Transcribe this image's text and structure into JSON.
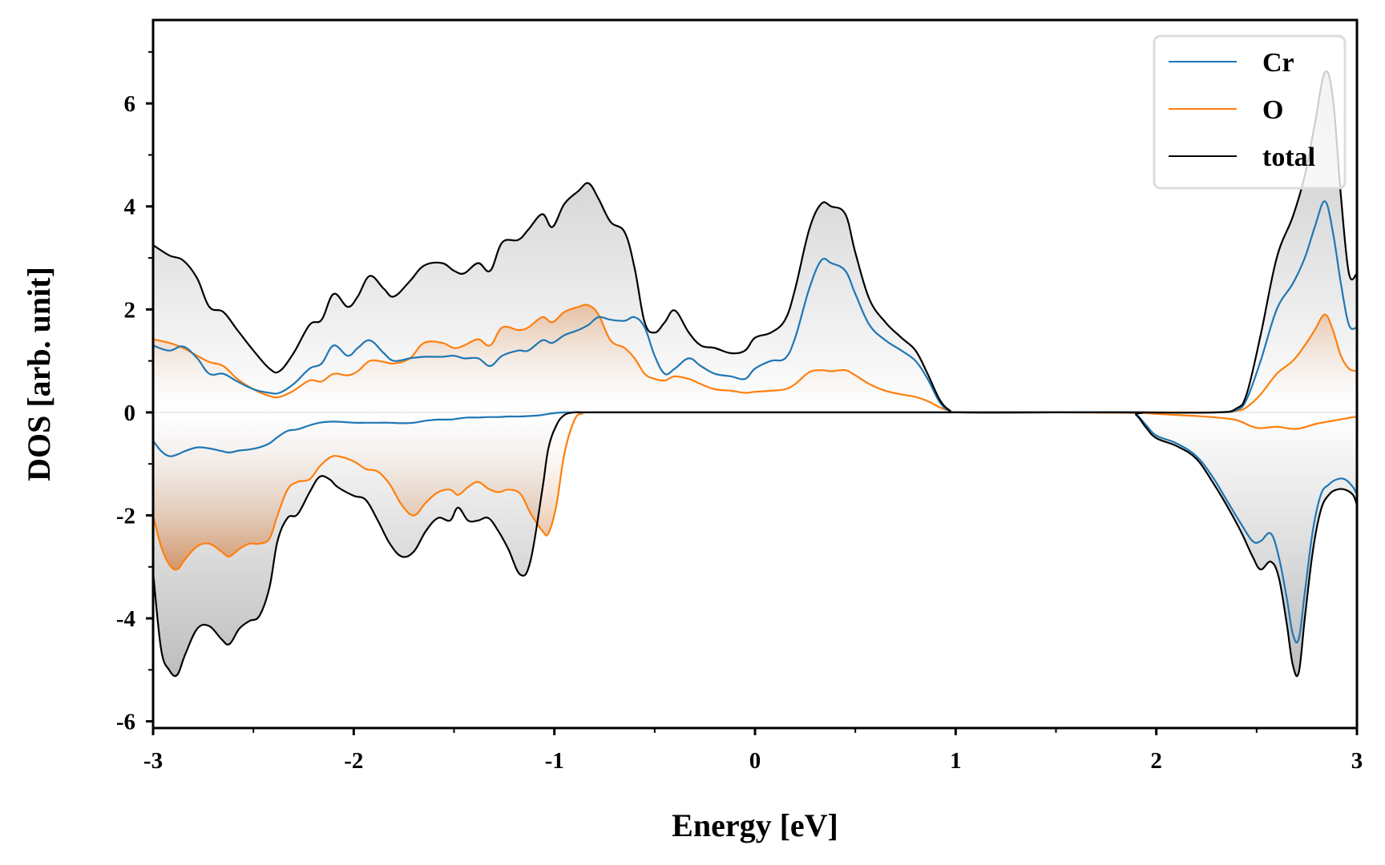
{
  "chart_data": {
    "type": "line",
    "title": "",
    "xlabel": "Energy [eV]",
    "ylabel": "DOS [arb. unit]",
    "xlim": [
      -3,
      3
    ],
    "ylim": [
      -6.13,
      7.62
    ],
    "xticks": [
      -3,
      -2,
      -1,
      0,
      1,
      2,
      3
    ],
    "xtick_labels": [
      "-3",
      "-2",
      "-1",
      "0",
      "1",
      "2",
      "3"
    ],
    "yticks": [
      -6,
      -4,
      -2,
      0,
      2,
      4,
      6
    ],
    "ytick_labels": [
      "-6",
      "-4",
      "-2",
      "0",
      "2",
      "4",
      "6"
    ],
    "grid": false,
    "legend_position": "top-right",
    "legend": [
      "Cr",
      "O",
      "total"
    ],
    "colors": {
      "Cr": "#1f77b4",
      "O": "#ff7f0e",
      "total": "#000000",
      "fill_total": "#b0b0b0",
      "fill_O": "#d2874a"
    },
    "series": [
      {
        "name": "total",
        "channel": "spin-up",
        "x": [
          -3.0,
          -2.92,
          -2.85,
          -2.78,
          -2.72,
          -2.65,
          -2.58,
          -2.5,
          -2.42,
          -2.37,
          -2.3,
          -2.22,
          -2.16,
          -2.1,
          -2.03,
          -1.98,
          -1.92,
          -1.85,
          -1.8,
          -1.72,
          -1.65,
          -1.56,
          -1.5,
          -1.45,
          -1.38,
          -1.32,
          -1.26,
          -1.18,
          -1.13,
          -1.06,
          -1.01,
          -0.95,
          -0.88,
          -0.83,
          -0.78,
          -0.72,
          -0.65,
          -0.6,
          -0.55,
          -0.5,
          -0.45,
          -0.4,
          -0.33,
          -0.27,
          -0.2,
          -0.12,
          -0.05,
          0.0,
          0.08,
          0.15,
          0.2,
          0.27,
          0.33,
          0.38,
          0.45,
          0.5,
          0.57,
          0.65,
          0.73,
          0.8,
          0.86,
          0.92,
          0.97,
          1.02,
          1.5,
          1.9,
          2.3,
          2.4,
          2.45,
          2.52,
          2.6,
          2.68,
          2.74,
          2.79,
          2.84,
          2.88,
          2.92,
          2.96,
          3.0
        ],
        "y": [
          3.25,
          3.05,
          2.95,
          2.6,
          2.05,
          1.95,
          1.6,
          1.2,
          0.85,
          0.8,
          1.15,
          1.7,
          1.8,
          2.3,
          2.05,
          2.25,
          2.65,
          2.4,
          2.25,
          2.55,
          2.85,
          2.9,
          2.75,
          2.7,
          2.9,
          2.75,
          3.3,
          3.35,
          3.55,
          3.85,
          3.6,
          4.05,
          4.3,
          4.45,
          4.15,
          3.7,
          3.5,
          2.8,
          1.75,
          1.55,
          1.75,
          1.98,
          1.55,
          1.3,
          1.25,
          1.15,
          1.2,
          1.45,
          1.55,
          1.8,
          2.4,
          3.55,
          4.05,
          4.0,
          3.85,
          3.1,
          2.2,
          1.75,
          1.45,
          1.2,
          0.75,
          0.25,
          0.04,
          0.0,
          0.0,
          0.0,
          0.0,
          0.08,
          0.35,
          1.5,
          3.0,
          3.8,
          4.6,
          5.6,
          6.6,
          6.1,
          4.2,
          2.7,
          2.7
        ]
      },
      {
        "name": "Cr",
        "channel": "spin-up",
        "x": [
          -3.0,
          -2.92,
          -2.85,
          -2.78,
          -2.72,
          -2.65,
          -2.58,
          -2.5,
          -2.42,
          -2.37,
          -2.3,
          -2.22,
          -2.16,
          -2.1,
          -2.03,
          -1.98,
          -1.92,
          -1.85,
          -1.8,
          -1.72,
          -1.65,
          -1.56,
          -1.5,
          -1.45,
          -1.38,
          -1.32,
          -1.26,
          -1.18,
          -1.13,
          -1.06,
          -1.01,
          -0.95,
          -0.88,
          -0.83,
          -0.78,
          -0.72,
          -0.65,
          -0.6,
          -0.55,
          -0.5,
          -0.45,
          -0.4,
          -0.33,
          -0.27,
          -0.2,
          -0.12,
          -0.05,
          0.0,
          0.08,
          0.15,
          0.2,
          0.27,
          0.33,
          0.38,
          0.45,
          0.5,
          0.57,
          0.65,
          0.73,
          0.8,
          0.86,
          0.92,
          0.97,
          1.02,
          1.5,
          1.9,
          2.3,
          2.4,
          2.45,
          2.52,
          2.6,
          2.68,
          2.74,
          2.79,
          2.84,
          2.88,
          2.92,
          2.96,
          3.0
        ],
        "y": [
          1.3,
          1.2,
          1.28,
          1.05,
          0.75,
          0.75,
          0.6,
          0.45,
          0.38,
          0.38,
          0.55,
          0.85,
          0.95,
          1.3,
          1.1,
          1.25,
          1.4,
          1.15,
          1.0,
          1.05,
          1.08,
          1.08,
          1.1,
          1.05,
          1.05,
          0.9,
          1.1,
          1.2,
          1.2,
          1.4,
          1.35,
          1.5,
          1.6,
          1.7,
          1.85,
          1.8,
          1.78,
          1.85,
          1.65,
          1.1,
          0.75,
          0.85,
          1.05,
          0.9,
          0.75,
          0.7,
          0.65,
          0.85,
          1.0,
          1.05,
          1.45,
          2.4,
          2.95,
          2.9,
          2.75,
          2.3,
          1.7,
          1.4,
          1.2,
          1.0,
          0.65,
          0.2,
          0.03,
          0.0,
          0.0,
          0.0,
          0.0,
          0.05,
          0.25,
          1.0,
          2.0,
          2.5,
          3.0,
          3.6,
          4.1,
          3.5,
          2.5,
          1.7,
          1.65
        ]
      },
      {
        "name": "O",
        "channel": "spin-up",
        "x": [
          -3.0,
          -2.92,
          -2.85,
          -2.78,
          -2.72,
          -2.65,
          -2.58,
          -2.5,
          -2.42,
          -2.37,
          -2.3,
          -2.22,
          -2.16,
          -2.1,
          -2.03,
          -1.98,
          -1.92,
          -1.85,
          -1.8,
          -1.72,
          -1.65,
          -1.56,
          -1.5,
          -1.45,
          -1.38,
          -1.32,
          -1.26,
          -1.18,
          -1.13,
          -1.06,
          -1.01,
          -0.95,
          -0.88,
          -0.83,
          -0.78,
          -0.72,
          -0.65,
          -0.6,
          -0.55,
          -0.5,
          -0.45,
          -0.4,
          -0.33,
          -0.27,
          -0.2,
          -0.12,
          -0.05,
          0.0,
          0.08,
          0.15,
          0.2,
          0.27,
          0.33,
          0.38,
          0.45,
          0.5,
          0.57,
          0.65,
          0.73,
          0.8,
          0.86,
          0.92,
          0.97,
          1.02,
          1.5,
          1.9,
          2.3,
          2.4,
          2.45,
          2.52,
          2.6,
          2.68,
          2.74,
          2.79,
          2.84,
          2.88,
          2.92,
          2.96,
          3.0
        ],
        "y": [
          1.42,
          1.35,
          1.25,
          1.1,
          0.98,
          0.9,
          0.65,
          0.45,
          0.32,
          0.3,
          0.42,
          0.62,
          0.6,
          0.75,
          0.72,
          0.8,
          1.0,
          0.98,
          0.95,
          1.05,
          1.35,
          1.35,
          1.25,
          1.3,
          1.42,
          1.3,
          1.65,
          1.6,
          1.65,
          1.85,
          1.75,
          1.95,
          2.05,
          2.08,
          1.9,
          1.4,
          1.25,
          1.05,
          0.75,
          0.65,
          0.62,
          0.7,
          0.65,
          0.55,
          0.45,
          0.42,
          0.38,
          0.4,
          0.42,
          0.45,
          0.55,
          0.78,
          0.82,
          0.8,
          0.82,
          0.72,
          0.55,
          0.42,
          0.35,
          0.3,
          0.22,
          0.1,
          0.03,
          0.0,
          0.0,
          0.0,
          0.0,
          0.03,
          0.1,
          0.35,
          0.75,
          1.0,
          1.3,
          1.6,
          1.9,
          1.6,
          1.1,
          0.85,
          0.8
        ]
      },
      {
        "name": "total",
        "channel": "spin-down",
        "x": [
          -3.0,
          -2.96,
          -2.92,
          -2.88,
          -2.84,
          -2.78,
          -2.72,
          -2.66,
          -2.62,
          -2.57,
          -2.52,
          -2.47,
          -2.42,
          -2.38,
          -2.33,
          -2.28,
          -2.22,
          -2.17,
          -2.12,
          -2.08,
          -2.0,
          -1.94,
          -1.88,
          -1.82,
          -1.76,
          -1.7,
          -1.64,
          -1.58,
          -1.52,
          -1.48,
          -1.43,
          -1.38,
          -1.33,
          -1.28,
          -1.23,
          -1.17,
          -1.12,
          -1.06,
          -1.03,
          -0.99,
          -0.95,
          -0.9,
          -0.86,
          -0.8,
          0.0,
          1.0,
          1.85,
          1.9,
          1.95,
          2.0,
          2.1,
          2.2,
          2.28,
          2.35,
          2.42,
          2.48,
          2.52,
          2.57,
          2.61,
          2.65,
          2.68,
          2.71,
          2.74,
          2.78,
          2.82,
          2.86,
          2.9,
          2.94,
          2.98,
          3.0
        ],
        "y": [
          -3.1,
          -4.6,
          -5.0,
          -5.1,
          -4.7,
          -4.2,
          -4.15,
          -4.4,
          -4.5,
          -4.2,
          -4.05,
          -3.95,
          -3.4,
          -2.5,
          -2.05,
          -1.98,
          -1.55,
          -1.25,
          -1.3,
          -1.45,
          -1.62,
          -1.7,
          -2.1,
          -2.55,
          -2.8,
          -2.7,
          -2.3,
          -2.05,
          -2.1,
          -1.85,
          -2.1,
          -2.1,
          -2.05,
          -2.3,
          -2.65,
          -3.15,
          -2.9,
          -1.5,
          -0.7,
          -0.25,
          -0.05,
          0.0,
          0.0,
          0.0,
          0.0,
          0.0,
          0.0,
          -0.05,
          -0.3,
          -0.5,
          -0.65,
          -0.9,
          -1.35,
          -1.8,
          -2.3,
          -2.8,
          -3.05,
          -2.9,
          -3.2,
          -4.1,
          -4.9,
          -5.05,
          -4.0,
          -2.7,
          -1.9,
          -1.6,
          -1.5,
          -1.5,
          -1.6,
          -1.8
        ]
      },
      {
        "name": "Cr",
        "channel": "spin-down",
        "x": [
          -3.0,
          -2.96,
          -2.92,
          -2.88,
          -2.84,
          -2.78,
          -2.72,
          -2.66,
          -2.62,
          -2.57,
          -2.52,
          -2.47,
          -2.42,
          -2.38,
          -2.33,
          -2.28,
          -2.22,
          -2.17,
          -2.12,
          -2.08,
          -2.0,
          -1.94,
          -1.88,
          -1.82,
          -1.76,
          -1.7,
          -1.64,
          -1.58,
          -1.52,
          -1.48,
          -1.43,
          -1.38,
          -1.33,
          -1.28,
          -1.23,
          -1.17,
          -1.12,
          -1.06,
          -1.03,
          -0.99,
          -0.95,
          -0.9,
          -0.86,
          -0.8,
          0.0,
          1.0,
          1.85,
          1.9,
          1.95,
          2.0,
          2.1,
          2.2,
          2.28,
          2.35,
          2.42,
          2.48,
          2.52,
          2.57,
          2.61,
          2.65,
          2.68,
          2.71,
          2.74,
          2.78,
          2.82,
          2.86,
          2.9,
          2.94,
          2.98,
          3.0
        ],
        "y": [
          -0.55,
          -0.75,
          -0.85,
          -0.82,
          -0.75,
          -0.68,
          -0.7,
          -0.75,
          -0.78,
          -0.74,
          -0.72,
          -0.68,
          -0.6,
          -0.48,
          -0.36,
          -0.33,
          -0.25,
          -0.2,
          -0.18,
          -0.18,
          -0.2,
          -0.2,
          -0.2,
          -0.2,
          -0.21,
          -0.2,
          -0.16,
          -0.14,
          -0.14,
          -0.12,
          -0.1,
          -0.1,
          -0.09,
          -0.09,
          -0.08,
          -0.08,
          -0.07,
          -0.05,
          -0.03,
          -0.01,
          0.0,
          0.0,
          0.0,
          0.0,
          0.0,
          0.0,
          0.0,
          -0.04,
          -0.25,
          -0.45,
          -0.6,
          -0.85,
          -1.25,
          -1.7,
          -2.15,
          -2.5,
          -2.5,
          -2.35,
          -2.8,
          -3.6,
          -4.3,
          -4.4,
          -3.5,
          -2.3,
          -1.6,
          -1.4,
          -1.3,
          -1.3,
          -1.45,
          -1.6
        ]
      },
      {
        "name": "O",
        "channel": "spin-down",
        "x": [
          -3.0,
          -2.96,
          -2.92,
          -2.88,
          -2.84,
          -2.78,
          -2.72,
          -2.66,
          -2.62,
          -2.57,
          -2.52,
          -2.47,
          -2.42,
          -2.38,
          -2.33,
          -2.28,
          -2.22,
          -2.17,
          -2.12,
          -2.08,
          -2.0,
          -1.94,
          -1.88,
          -1.82,
          -1.76,
          -1.7,
          -1.64,
          -1.58,
          -1.52,
          -1.48,
          -1.43,
          -1.38,
          -1.33,
          -1.28,
          -1.23,
          -1.17,
          -1.12,
          -1.06,
          -1.03,
          -0.99,
          -0.95,
          -0.9,
          -0.86,
          -0.8,
          0.0,
          1.0,
          1.5,
          1.9,
          2.0,
          2.1,
          2.2,
          2.3,
          2.4,
          2.5,
          2.6,
          2.7,
          2.8,
          2.9,
          3.0
        ],
        "y": [
          -2.0,
          -2.6,
          -2.95,
          -3.05,
          -2.85,
          -2.6,
          -2.55,
          -2.7,
          -2.8,
          -2.65,
          -2.55,
          -2.55,
          -2.45,
          -2.0,
          -1.5,
          -1.35,
          -1.3,
          -1.05,
          -0.88,
          -0.85,
          -0.95,
          -1.1,
          -1.15,
          -1.4,
          -1.8,
          -2.0,
          -1.75,
          -1.55,
          -1.5,
          -1.6,
          -1.45,
          -1.35,
          -1.48,
          -1.55,
          -1.5,
          -1.58,
          -1.95,
          -2.3,
          -2.35,
          -1.8,
          -0.8,
          -0.15,
          -0.02,
          0.0,
          0.0,
          0.0,
          0.0,
          -0.01,
          -0.03,
          -0.05,
          -0.07,
          -0.1,
          -0.15,
          -0.3,
          -0.28,
          -0.32,
          -0.22,
          -0.15,
          -0.08
        ]
      }
    ]
  }
}
